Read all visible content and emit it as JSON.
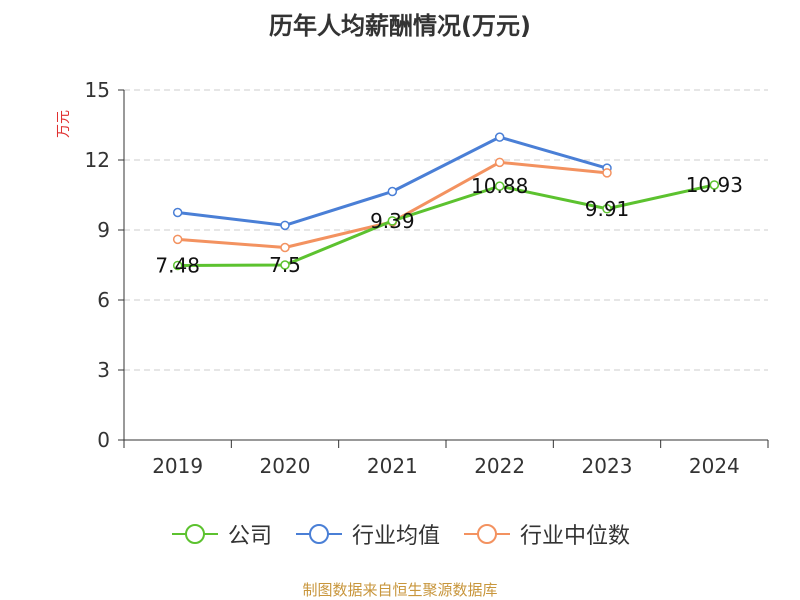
{
  "title": "历年人均薪酬情况(万元)",
  "source": "制图数据来自恒生聚源数据库",
  "chart_data": {
    "type": "line",
    "title": "历年人均薪酬情况(万元)",
    "xlabel": "",
    "ylabel": "万元",
    "ylim": [
      0,
      15
    ],
    "yticks": [
      "0",
      "3",
      "6",
      "9",
      "12",
      "15"
    ],
    "categories": [
      "2019",
      "2020",
      "2021",
      "2022",
      "2023",
      "2024"
    ],
    "grid": true,
    "legend_position": "bottom",
    "series": [
      {
        "name": "公司",
        "color": "#5cc22f",
        "values": [
          7.48,
          7.5,
          9.39,
          10.88,
          9.91,
          10.93
        ],
        "labels": [
          "7.48",
          "7.5",
          "9.39",
          "10.88",
          "9.91",
          "10.93"
        ]
      },
      {
        "name": "行业均值",
        "color": "#4a7fd6",
        "values": [
          9.75,
          9.2,
          10.65,
          12.98,
          11.65,
          null
        ]
      },
      {
        "name": "行业中位数",
        "color": "#f39260",
        "values": [
          8.6,
          8.25,
          9.35,
          11.9,
          11.45,
          null
        ]
      }
    ]
  }
}
